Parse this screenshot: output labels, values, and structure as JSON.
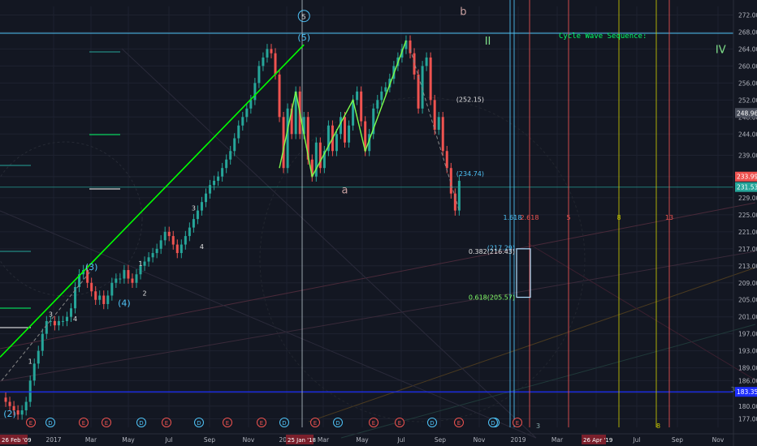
{
  "colors": {
    "background": "#131722",
    "grid": "#1e2230",
    "up": "#26a69a",
    "down": "#ef5350",
    "fib": "#ef5350",
    "trend": "#00ff00",
    "cyan": "#4fc3f7",
    "blue": "#1e2fff",
    "yellow": "#c8c800"
  },
  "chart_data": {
    "type": "candlestick",
    "title": "Cycle Wave Sequence:",
    "ylim": [
      175,
      274
    ],
    "price_ticks": [
      177,
      180,
      183,
      186,
      189,
      193,
      197,
      201,
      205,
      209,
      213,
      217,
      221,
      225,
      229,
      234,
      239,
      244,
      248,
      252,
      256,
      260,
      264,
      268,
      272
    ],
    "time_ticks": [
      "2017",
      "Mar",
      "May",
      "Jul",
      "Sep",
      "Nov",
      "2018",
      "Mar",
      "May",
      "Jul",
      "Sep",
      "Nov",
      "2019",
      "Mar",
      "May",
      "Jul",
      "Sep",
      "Nov"
    ],
    "date_flags": [
      "26 Feb '09",
      "25 Jan '18",
      "26 Apr '19"
    ],
    "price_flags": [
      "248.96",
      "233.99",
      "231.53",
      "183.35"
    ],
    "price_path": [
      [
        0,
        182
      ],
      [
        1,
        181
      ],
      [
        2,
        180
      ],
      [
        3,
        179
      ],
      [
        4,
        178
      ],
      [
        5,
        179
      ],
      [
        6,
        181
      ],
      [
        7,
        186
      ],
      [
        8,
        190
      ],
      [
        9,
        193
      ],
      [
        10,
        197
      ],
      [
        11,
        200
      ],
      [
        12,
        200
      ],
      [
        13,
        199
      ],
      [
        14,
        200
      ],
      [
        15,
        200
      ],
      [
        16,
        201
      ],
      [
        17,
        203
      ],
      [
        18,
        208
      ],
      [
        19,
        211
      ],
      [
        20,
        212
      ],
      [
        21,
        209
      ],
      [
        22,
        207
      ],
      [
        23,
        205
      ],
      [
        24,
        206
      ],
      [
        25,
        204
      ],
      [
        26,
        206
      ],
      [
        27,
        209
      ],
      [
        28,
        210
      ],
      [
        29,
        210
      ],
      [
        30,
        212
      ],
      [
        31,
        210
      ],
      [
        32,
        209
      ],
      [
        33,
        211
      ],
      [
        34,
        213
      ],
      [
        35,
        214
      ],
      [
        36,
        215
      ],
      [
        37,
        216
      ],
      [
        38,
        217
      ],
      [
        39,
        219
      ],
      [
        40,
        221
      ],
      [
        41,
        220
      ],
      [
        42,
        218
      ],
      [
        43,
        216
      ],
      [
        44,
        218
      ],
      [
        45,
        220
      ],
      [
        46,
        222
      ],
      [
        47,
        224
      ],
      [
        48,
        226
      ],
      [
        49,
        228
      ],
      [
        50,
        230
      ],
      [
        51,
        232
      ],
      [
        52,
        233
      ],
      [
        53,
        234
      ],
      [
        54,
        236
      ],
      [
        55,
        238
      ],
      [
        56,
        240
      ],
      [
        57,
        243
      ],
      [
        58,
        246
      ],
      [
        59,
        248
      ],
      [
        60,
        250
      ],
      [
        61,
        252
      ],
      [
        62,
        256
      ],
      [
        63,
        260
      ],
      [
        64,
        262
      ],
      [
        65,
        264
      ],
      [
        66,
        263
      ],
      [
        67,
        258
      ],
      [
        68,
        248
      ],
      [
        69,
        236
      ],
      [
        70,
        250
      ],
      [
        71,
        244
      ],
      [
        72,
        254
      ],
      [
        73,
        244
      ],
      [
        74,
        248
      ],
      [
        75,
        238
      ],
      [
        76,
        234
      ],
      [
        77,
        242
      ],
      [
        78,
        236
      ],
      [
        79,
        240
      ],
      [
        80,
        246
      ],
      [
        81,
        240
      ],
      [
        82,
        244
      ],
      [
        83,
        248
      ],
      [
        84,
        242
      ],
      [
        85,
        246
      ],
      [
        86,
        252
      ],
      [
        87,
        254
      ],
      [
        88,
        247
      ],
      [
        89,
        240
      ],
      [
        90,
        244
      ],
      [
        91,
        250
      ],
      [
        92,
        252
      ],
      [
        93,
        254
      ],
      [
        94,
        255
      ],
      [
        95,
        257
      ],
      [
        96,
        260
      ],
      [
        97,
        262
      ],
      [
        98,
        264
      ],
      [
        99,
        266
      ],
      [
        100,
        263
      ],
      [
        101,
        258
      ],
      [
        102,
        250
      ],
      [
        103,
        260
      ],
      [
        104,
        262
      ],
      [
        105,
        252
      ],
      [
        106,
        245
      ],
      [
        107,
        248
      ],
      [
        108,
        240
      ],
      [
        109,
        236
      ],
      [
        110,
        230
      ],
      [
        111,
        226
      ],
      [
        112,
        233
      ]
    ],
    "wave_labels": [
      {
        "text": "(2)",
        "x": 2,
        "y": 177.5
      },
      {
        "text": "1",
        "x": 7,
        "y": 190
      },
      {
        "text": "3",
        "x": 12,
        "y": 201
      },
      {
        "text": "4",
        "x": 18,
        "y": 200
      },
      {
        "text": "(3)",
        "x": 22,
        "y": 212
      },
      {
        "text": "(4)",
        "x": 30,
        "y": 203.5
      },
      {
        "text": "1",
        "x": 34,
        "y": 213
      },
      {
        "text": "2",
        "x": 35,
        "y": 206
      },
      {
        "text": "3",
        "x": 47,
        "y": 226
      },
      {
        "text": "4",
        "x": 49,
        "y": 217
      },
      {
        "text": "5",
        "x": 74,
        "y": 271
      },
      {
        "text": "(5)",
        "x": 74,
        "y": 266
      },
      {
        "text": "a",
        "x": 84,
        "y": 230
      },
      {
        "text": "b",
        "x": 113,
        "y": 272
      },
      {
        "text": "II",
        "x": 119,
        "y": 265
      },
      {
        "text": "IV",
        "x": 176,
        "y": 263
      }
    ],
    "fib_labels": [
      {
        "text": "(252.15)",
        "y": 252.15
      },
      {
        "text": "(234.74)",
        "y": 234.74
      },
      {
        "text": "(217.29)",
        "y": 217.29
      },
      {
        "text": "0.382(216.43)",
        "y": 216.43
      },
      {
        "text": "0.618(205.57)",
        "y": 205.57
      }
    ],
    "cycle_labels": [
      {
        "text": "1.618",
        "color": "#4fc3f7"
      },
      {
        "text": "2.618",
        "color": "#ef5350"
      },
      {
        "text": "5",
        "color": "#ef5350"
      },
      {
        "text": "8",
        "color": "#c8c800"
      },
      {
        "text": "13",
        "color": "#ef5350"
      }
    ],
    "event_badges": [
      "E",
      "D",
      "E",
      "E",
      "D",
      "E",
      "D",
      "E",
      "E",
      "D",
      "E",
      "D",
      "E",
      "E",
      "D",
      "E",
      "D",
      "E",
      "D"
    ],
    "right_markers": [
      "3",
      "3",
      "8"
    ]
  }
}
